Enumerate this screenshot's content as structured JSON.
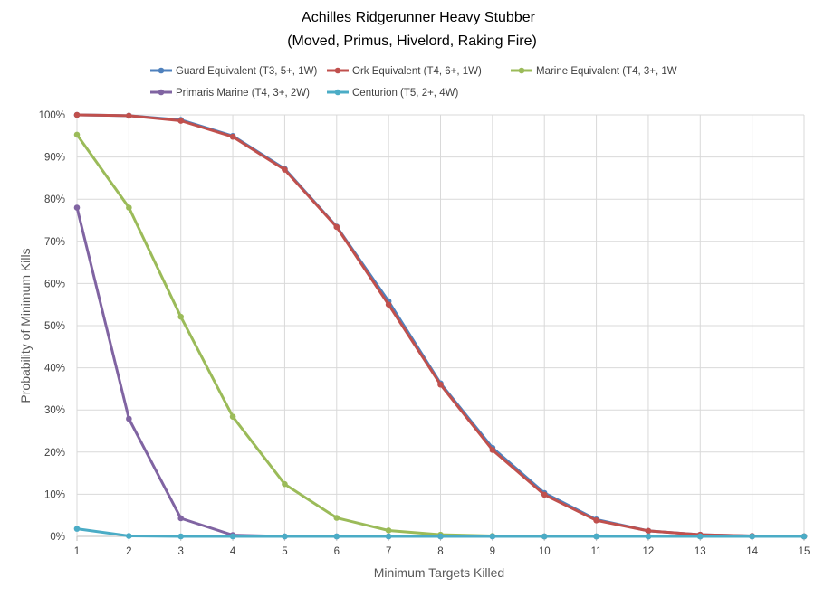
{
  "chart_data": {
    "type": "line",
    "title": "Achilles Ridgerunner Heavy Stubber",
    "subtitle": "(Moved, Primus, Hivelord, Raking Fire)",
    "xlabel": "Minimum Targets Killed",
    "ylabel": "Probability of Minimum Kills",
    "x": [
      1,
      2,
      3,
      4,
      5,
      6,
      7,
      8,
      9,
      10,
      11,
      12,
      13,
      14,
      15
    ],
    "x_tick_labels": [
      "1",
      "2",
      "3",
      "4",
      "5",
      "6",
      "7",
      "8",
      "9",
      "10",
      "11",
      "12",
      "13",
      "14",
      "15"
    ],
    "y_tick_labels": [
      "0%",
      "10%",
      "20%",
      "30%",
      "40%",
      "50%",
      "60%",
      "70%",
      "80%",
      "90%",
      "100%"
    ],
    "ylim": [
      0,
      100
    ],
    "y_unit": "%",
    "grid": true,
    "legend_position": "top",
    "series": [
      {
        "name": "Guard Equivalent (T3, 5+, 1W)",
        "color": "#4F81BD",
        "values": [
          100,
          99.8,
          98.8,
          95,
          87.2,
          73.5,
          55.8,
          36.3,
          21,
          10.3,
          4,
          1.3,
          0.4,
          0.1,
          0
        ]
      },
      {
        "name": "Ork Equivalent (T4, 6+, 1W)",
        "color": "#C0504D",
        "values": [
          100,
          99.8,
          98.6,
          94.8,
          87,
          73.4,
          55,
          36,
          20.5,
          9.9,
          3.8,
          1.3,
          0.4,
          0.1,
          0
        ]
      },
      {
        "name": "Marine Equivalent (T4, 3+, 1W",
        "color": "#9BBB59",
        "values": [
          95.3,
          78,
          52.1,
          28.4,
          12.4,
          4.4,
          1.4,
          0.4,
          0.1,
          0,
          0,
          0,
          0,
          0,
          0
        ]
      },
      {
        "name": "Primaris Marine (T4, 3+, 2W)",
        "color": "#8064A2",
        "values": [
          78,
          27.9,
          4.3,
          0.3,
          0,
          0,
          0,
          0,
          0,
          0,
          0,
          0,
          0,
          0,
          0
        ]
      },
      {
        "name": "Centurion (T5, 2+, 4W)",
        "color": "#4BACC6",
        "values": [
          1.8,
          0.1,
          0,
          0,
          0,
          0,
          0,
          0,
          0,
          0,
          0,
          0,
          0,
          0,
          0
        ]
      }
    ]
  }
}
